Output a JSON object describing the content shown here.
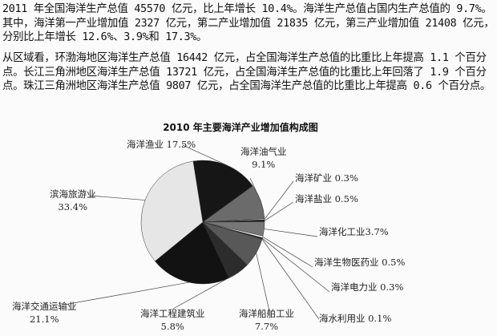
{
  "text": {
    "paragraph1": "2011 年全国海洋生产总值 45570 亿元，比上年增长 10.4%。海洋生产总值占国内生产总值的 9.7%。其中，海洋第一产业增加值 2327 亿元，第二产业增加值 21835 亿元，第三产业增加值 21408 亿元，分别比上年增长 12.6%、3.9%和 17.3%。",
    "paragraph2": "从区域看，环渤海地区海洋生产总值 16442 亿元，占全国海洋生产总值的比重比上年提高 1.1 个百分点。长江三角洲地区海洋生产总值 13721 亿元，占全国海洋生产总值的比重比上年回落了 1.9 个百分点。珠江三角洲地区海洋生产总值 9807 亿元，占全国海洋生产总值的比重比上年提高 0.6 个百分点。"
  },
  "chart_data": {
    "type": "pie",
    "title": "2010 年主要海洋产业增加值构成图",
    "unit": "%",
    "slices": [
      {
        "label": "海洋渔业",
        "value": 17.5,
        "value_text": "17.5%",
        "color": "#161616"
      },
      {
        "label": "海洋油气业",
        "value": 9.1,
        "value_text": "9.1%",
        "color": "#6b6b6b"
      },
      {
        "label": "海洋矿业",
        "value": 0.3,
        "value_text": "0.3%",
        "color": "#c8c8c8"
      },
      {
        "label": "海洋盐业",
        "value": 0.5,
        "value_text": "0.5%",
        "color": "#222222"
      },
      {
        "label": "海洋化工业",
        "value": 3.7,
        "value_text": "3.7%",
        "color": "#777777"
      },
      {
        "label": "海洋生物医药业",
        "value": 0.5,
        "value_text": "0.5%",
        "color": "#f0f0f0"
      },
      {
        "label": "海洋电力业",
        "value": 0.3,
        "value_text": "0.3%",
        "color": "#222222"
      },
      {
        "label": "海水利用业",
        "value": 0.1,
        "value_text": "0.1%",
        "color": "#999999"
      },
      {
        "label": "海洋船舶工业",
        "value": 7.7,
        "value_text": "7.7%",
        "color": "#585858"
      },
      {
        "label": "海洋工程建筑业",
        "value": 5.8,
        "value_text": "5.8%",
        "color": "#2c2c2c"
      },
      {
        "label": "海洋交通运输业",
        "value": 21.1,
        "value_text": "21.1%",
        "color": "#121212"
      },
      {
        "label": "滨海旅游业",
        "value": 33.4,
        "value_text": "33.4%",
        "color": "#e6e6e6"
      }
    ]
  }
}
